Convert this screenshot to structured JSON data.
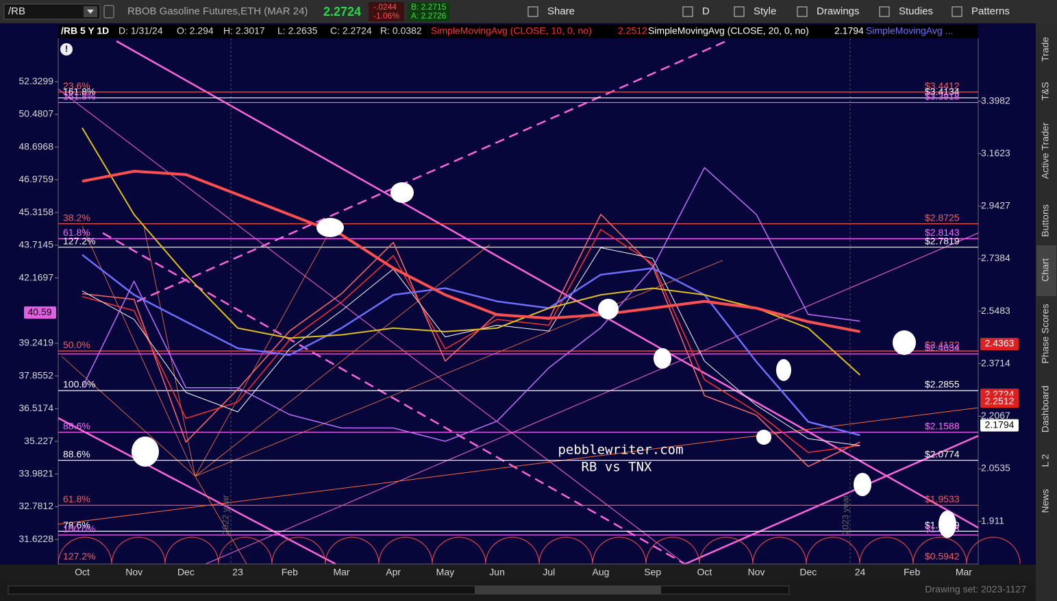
{
  "toolbar": {
    "symbol": "/RB",
    "description": "RBOB Gasoline Futures,ETH (MAR 24)",
    "change": "-.0244",
    "change_pct": "-1.06%",
    "bid": "B: 2.2715",
    "ask": "A: 2.2726",
    "buttons": [
      "Share",
      "D",
      "Style",
      "Drawings",
      "Studies",
      "Patterns"
    ]
  },
  "header": {
    "symbol": "/RB 5 Y 1D",
    "date": "D: 1/31/24",
    "open": "O: 2.294",
    "high": "H: 2.3017",
    "low": "L: 2.2635",
    "close": "C: 2.2724",
    "range": "R: 0.0382"
  },
  "side_tabs": [
    "Trade",
    "T&S",
    "Active Trader",
    "Buttons",
    "Chart",
    "Phase Scores",
    "Dashboard",
    "L 2",
    "News"
  ],
  "annotations": [
    "pebblewriter.com",
    "RB vs TNX",
    "2022 year",
    "2023 year"
  ],
  "footer": {
    "drawing_set": "Drawing set: 2023-1127"
  },
  "chart_data": {
    "type": "line",
    "log_scale": true,
    "categories": [
      "Oct",
      "Nov",
      "Dec",
      "23",
      "Feb",
      "Mar",
      "Apr",
      "May",
      "Jun",
      "Jul",
      "Aug",
      "Sep",
      "Oct",
      "Nov",
      "Dec",
      "24",
      "Feb",
      "Mar"
    ],
    "ylim": [
      30.78,
      54.89
    ],
    "yticks": [
      31.6228,
      32.7812,
      33.9821,
      35.227,
      36.5174,
      37.8552,
      39.2419,
      42.1697,
      43.7145,
      45.3158,
      46.9759,
      48.6968,
      50.4807,
      52.3299
    ],
    "y2lim": [
      1.8023,
      3.7033
    ],
    "y2ticks": [
      1.911,
      2.0535,
      2.2067,
      2.3714,
      2.5483,
      2.7384,
      2.9427,
      3.1623,
      3.3982
    ],
    "series": [
      {
        "color": "#ff6b6b",
        "axis": "y2",
        "line_width": 1.5,
        "last_value": 2.2724,
        "values": [
          2.61,
          2.59,
          2.13,
          2.29,
          2.48,
          2.61,
          2.8,
          2.38,
          2.54,
          2.52,
          2.91,
          2.71,
          2.27,
          2.21,
          2.06,
          2.13,
          null,
          null
        ]
      },
      {
        "name": "SimpleMovingAvg (CLOSE, 10, 0, no)",
        "color": "#ff3030",
        "axis": "y2",
        "line_width": 1.5,
        "last_value": 2.2512,
        "values": [
          2.6,
          2.55,
          2.2,
          2.25,
          2.45,
          2.58,
          2.75,
          2.42,
          2.52,
          2.5,
          2.85,
          2.72,
          2.32,
          2.22,
          2.1,
          2.12,
          null,
          null
        ]
      },
      {
        "name": "SimpleMovingAvg (CLOSE, 20, 0, no)",
        "color": "#ffffff",
        "axis": "y2",
        "line_width": 1,
        "last_value": 2.1794,
        "values": [
          2.62,
          2.52,
          2.28,
          2.22,
          2.42,
          2.55,
          2.7,
          2.46,
          2.5,
          2.48,
          2.78,
          2.74,
          2.38,
          2.24,
          2.14,
          2.12,
          null,
          null
        ]
      },
      {
        "name": "SimpleMovingAvg ...",
        "color": "#6f6fff",
        "axis": "y2",
        "line_width": 2.5,
        "values": [
          2.753,
          2.606,
          2.512,
          2.422,
          2.4,
          2.49,
          2.606,
          2.63,
          2.583,
          2.559,
          2.679,
          2.703,
          2.606,
          2.378,
          2.19,
          2.15,
          null,
          null
        ]
      },
      {
        "color": "#e0c020",
        "axis": "y2",
        "line_width": 2,
        "values": [
          3.276,
          2.909,
          2.679,
          2.49,
          2.456,
          2.467,
          2.49,
          2.478,
          2.49,
          2.559,
          2.606,
          2.63,
          2.606,
          2.559,
          2.49,
          2.335,
          null,
          null
        ]
      },
      {
        "color": "#ff5050",
        "axis": "y2",
        "line_width": 4,
        "last_value": 2.4363,
        "values": [
          3.045,
          3.087,
          3.073,
          2.99,
          2.909,
          2.83,
          2.703,
          2.606,
          2.536,
          2.524,
          2.536,
          2.559,
          2.583,
          2.559,
          2.512,
          2.478,
          null,
          null
        ]
      },
      {
        "color": "#c070ff",
        "axis": "y",
        "line_width": 1.5,
        "last_value": 40.59,
        "values": [
          37.37,
          42.02,
          37.37,
          37.37,
          36.28,
          35.75,
          35.75,
          35.23,
          36.02,
          38.2,
          39.92,
          42.64,
          47.61,
          45.22,
          40.51,
          40.21,
          null,
          null
        ]
      }
    ],
    "levels": [
      {
        "left": "23.6%",
        "right": "$3.4412",
        "value": 3.4412,
        "color": "#ff5b5b"
      },
      {
        "left": "161.8%",
        "right": "$3.4134",
        "value": 3.4134,
        "color": "#ffffff"
      },
      {
        "left": "161.8%",
        "right": "$3.3918",
        "value": 3.3918,
        "color": "#ff66ff"
      },
      {
        "left": "38.2%",
        "right": "$2.8725",
        "value": 2.8725,
        "color": "#ff5b5b"
      },
      {
        "left": "61.8%",
        "right": "$2.8143",
        "value": 2.8143,
        "color": "#ff66ff"
      },
      {
        "left": "127.2%",
        "right": "$2.7819",
        "value": 2.7819,
        "color": "#ffffff"
      },
      {
        "left": "50.0%",
        "right": "$2.4132",
        "value": 2.4132,
        "color": "#ff5b5b"
      },
      {
        "right": "$2.4034",
        "value": 2.4034,
        "color": "#ff66ff"
      },
      {
        "left": "100.0%",
        "right": "$2.2855",
        "value": 2.2855,
        "color": "#ffffff"
      },
      {
        "left": "88.6%",
        "right": "$2.1588",
        "value": 2.1588,
        "color": "#ff66ff"
      },
      {
        "left": "88.6%",
        "right": "$2.0774",
        "value": 2.0774,
        "color": "#ffffff"
      },
      {
        "left": "61.8%",
        "right": "$1.9533",
        "value": 1.9533,
        "color": "#ff5b5b"
      },
      {
        "left": "78.6%",
        "right": "$1.8849",
        "value": 1.8849,
        "color": "#ffffff"
      },
      {
        "left": "100.0%",
        "right": "$1.8753",
        "value": 1.8753,
        "color": "#ff66ff"
      },
      {
        "left": "127.2%",
        "right": "$0.5942",
        "value": 0.5942,
        "color": "#ff5b5b"
      }
    ]
  }
}
